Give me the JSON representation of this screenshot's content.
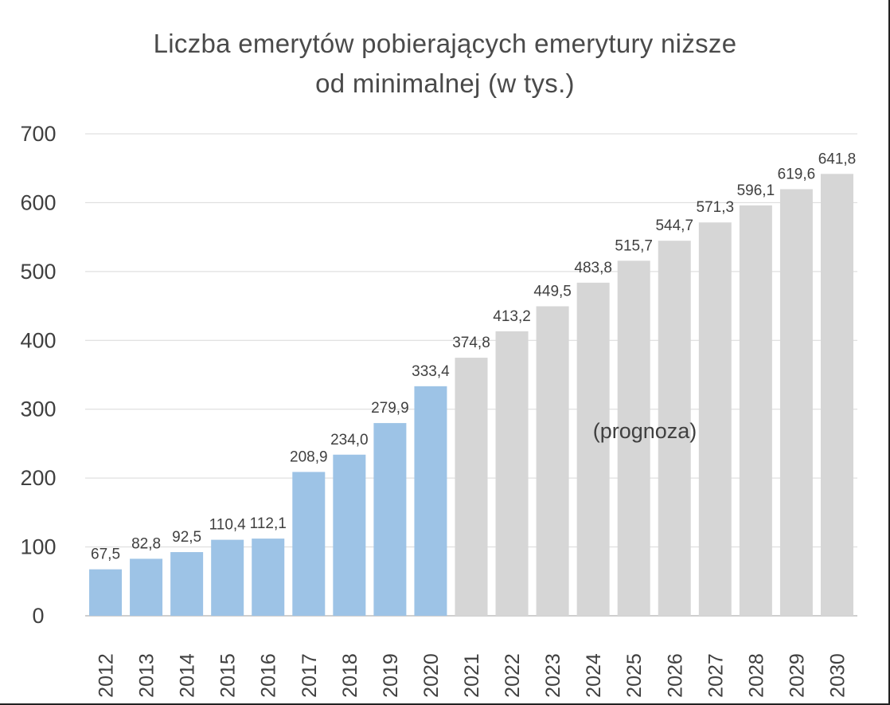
{
  "chart_data": {
    "type": "bar",
    "title_line1": "Liczba emerytów pobierających emerytury niższe",
    "title_line2": "od minimalnej (w tys.)",
    "annotation": "(prognoza)",
    "categories": [
      "2012",
      "2013",
      "2014",
      "2015",
      "2016",
      "2017",
      "2018",
      "2019",
      "2020",
      "2021",
      "2022",
      "2023",
      "2024",
      "2025",
      "2026",
      "2027",
      "2028",
      "2029",
      "2030"
    ],
    "values": [
      67.5,
      82.8,
      92.5,
      110.4,
      112.1,
      208.9,
      234.0,
      279.9,
      333.4,
      374.8,
      413.2,
      449.5,
      483.8,
      515.7,
      544.7,
      571.3,
      596.1,
      619.6,
      641.8
    ],
    "value_labels": [
      "67,5",
      "82,8",
      "92,5",
      "110,4",
      "112,1",
      "208,9",
      "234,0",
      "279,9",
      "333,4",
      "374,8",
      "413,2",
      "449,5",
      "483,8",
      "515,7",
      "544,7",
      "571,3",
      "596,1",
      "619,6",
      "641,8"
    ],
    "forecast_from_index": 9,
    "ylim": [
      0,
      700
    ],
    "yticks": [
      0,
      100,
      200,
      300,
      400,
      500,
      600,
      700
    ],
    "grid": true,
    "colors": {
      "actual": "#9dc3e6",
      "forecast": "#d6d6d6",
      "grid": "#d9d9d9",
      "text": "#404040"
    }
  }
}
